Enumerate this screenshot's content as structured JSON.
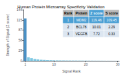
{
  "chart_data": {
    "type": "bar",
    "title": "Human Protein Microarray Specificity Validation",
    "xlabel": "Signal Rank",
    "ylabel": "Strength of Signal (Z score)",
    "x": [
      1,
      2,
      3,
      4,
      5,
      6,
      7,
      8,
      9,
      10,
      11,
      12,
      13,
      14,
      15,
      16,
      17,
      18,
      19,
      20,
      21,
      22,
      23,
      24,
      25,
      26,
      27,
      28,
      29,
      30
    ],
    "values": [
      119.46,
      10.01,
      7.72,
      5.5,
      4.2,
      3.1,
      2.5,
      2.0,
      1.8,
      1.5,
      1.3,
      1.2,
      1.1,
      1.0,
      0.95,
      0.9,
      0.85,
      0.8,
      0.75,
      0.7,
      0.65,
      0.6,
      0.55,
      0.5,
      0.45,
      0.4,
      0.38,
      0.35,
      0.32,
      0.3
    ],
    "colors": [
      "#4a90c4",
      "#7ec8e3",
      "#7ec8e3",
      "#7ec8e3",
      "#7ec8e3",
      "#7ec8e3",
      "#7ec8e3",
      "#7ec8e3",
      "#7ec8e3",
      "#7ec8e3",
      "#7ec8e3",
      "#7ec8e3",
      "#7ec8e3",
      "#7ec8e3",
      "#7ec8e3",
      "#7ec8e3",
      "#7ec8e3",
      "#7ec8e3",
      "#7ec8e3",
      "#7ec8e3",
      "#7ec8e3",
      "#7ec8e3",
      "#7ec8e3",
      "#7ec8e3",
      "#7ec8e3",
      "#7ec8e3",
      "#7ec8e3",
      "#7ec8e3",
      "#7ec8e3",
      "#7ec8e3"
    ],
    "xlim": [
      0.5,
      30.5
    ],
    "xticks": [
      1,
      10,
      20,
      30
    ],
    "ylim": [
      0,
      144
    ],
    "yticks": [
      0,
      29,
      58,
      87,
      115,
      144
    ],
    "grid": false,
    "table": {
      "headers": [
        "Rank",
        "Protein",
        "Z score",
        "S score"
      ],
      "rows": [
        [
          "1",
          "MDM2",
          "119.46",
          "109.45"
        ],
        [
          "2",
          "BCL78",
          "10.01",
          "2.29"
        ],
        [
          "3",
          "VEGFB",
          "7.72",
          "0.33"
        ]
      ],
      "header_colors": [
        "#b8b8b8",
        "#b8b8b8",
        "#4a9fd4",
        "#b8b8b8"
      ],
      "header_text_colors": [
        "black",
        "black",
        "white",
        "black"
      ],
      "row_colors": [
        "#4a9fd4",
        "#dce6f1",
        "#dce6f1"
      ],
      "row_text_colors": [
        "white",
        "black",
        "black"
      ]
    }
  }
}
